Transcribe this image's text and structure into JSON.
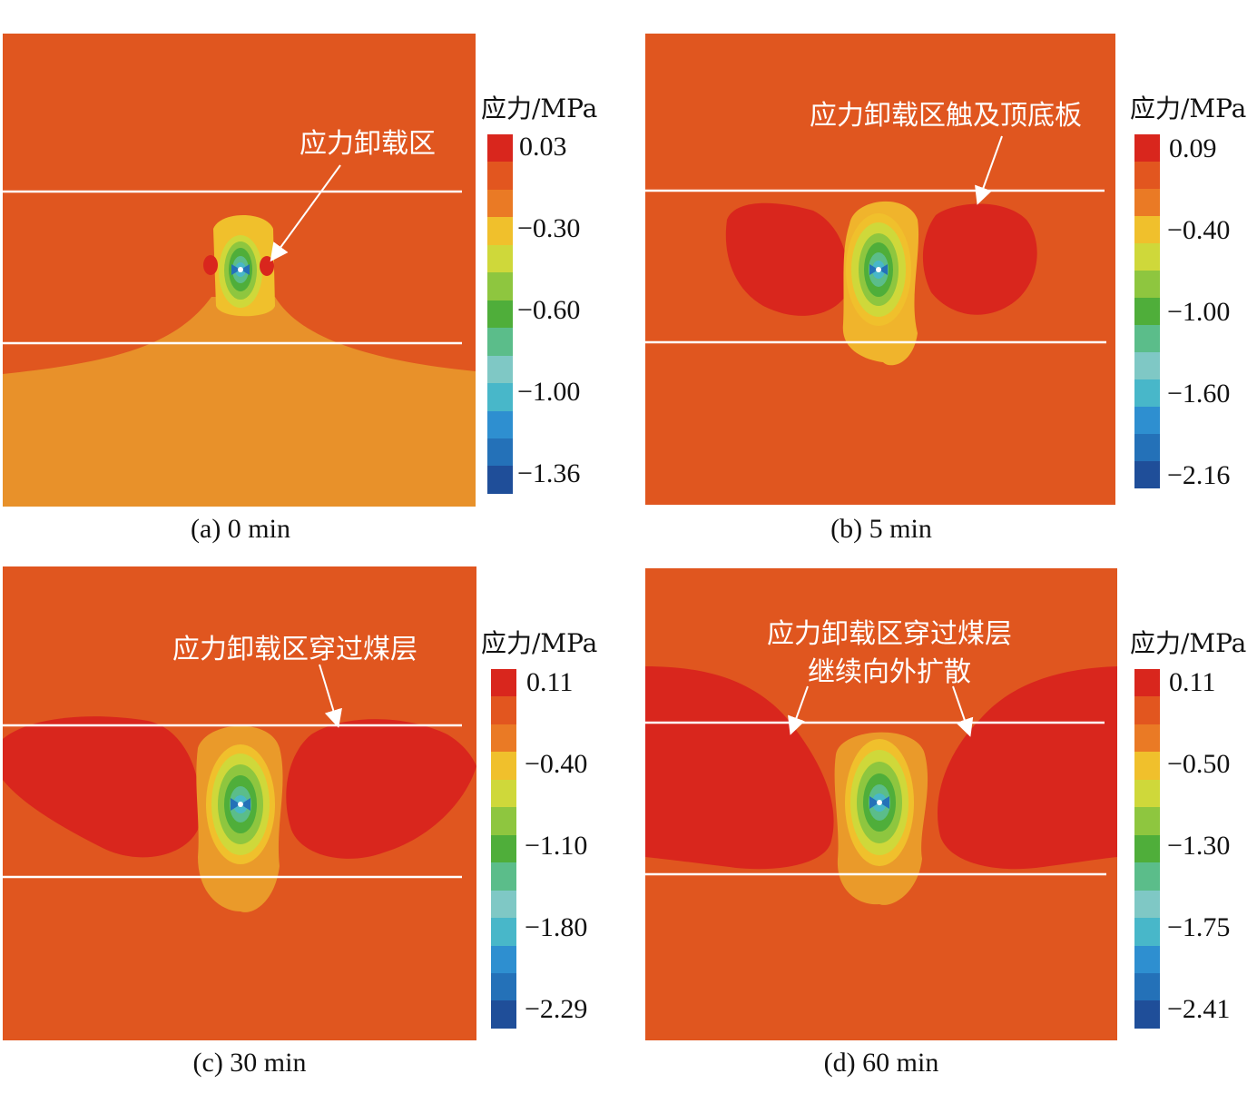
{
  "colors": {
    "background_red_orange": "#e0561f",
    "relief_red": "#d9261d",
    "orange_light": "#e8912a",
    "orange": "#ea7a25",
    "yellow": "#f0c02c",
    "yellow_green": "#cfd83a",
    "green_light": "#8ec63f",
    "green": "#4fae3a",
    "teal": "#5bbd8a",
    "cyan": "#48b7c9",
    "blue_light": "#2e9fd8",
    "blue": "#2471b8",
    "navy": "#1f4e99",
    "line_white": "#ffffff"
  },
  "colorbar_colors": [
    "#d9261d",
    "#e2561f",
    "#ea7a25",
    "#f0c02c",
    "#cfd83a",
    "#8ec63f",
    "#4fae3a",
    "#5bbd8a",
    "#7fc8c5",
    "#48b7c9",
    "#2e8fd0",
    "#2471b8",
    "#1f4e99"
  ],
  "panels": [
    {
      "caption": "(a) 0 min",
      "colorbar_title": "应力/MPa",
      "ticks": [
        "0.03",
        "−0.30",
        "−0.60",
        "−1.00",
        "−1.36"
      ],
      "annotation_lines": [
        "应力卸载区"
      ]
    },
    {
      "caption": "(b) 5 min",
      "colorbar_title": "应力/MPa",
      "ticks": [
        "0.09",
        "−0.40",
        "−1.00",
        "−1.60",
        "−2.16"
      ],
      "annotation_lines": [
        "应力卸载区触及顶底板"
      ]
    },
    {
      "caption": "(c) 30 min",
      "colorbar_title": "应力/MPa",
      "ticks": [
        "0.11",
        "−0.40",
        "−1.10",
        "−1.80",
        "−2.29"
      ],
      "annotation_lines": [
        "应力卸载区穿过煤层"
      ]
    },
    {
      "caption": "(d) 60 min",
      "colorbar_title": "应力/MPa",
      "ticks": [
        "0.11",
        "−0.50",
        "−1.30",
        "−1.75",
        "−2.41"
      ],
      "annotation_lines": [
        "应力卸载区穿过煤层",
        "继续向外扩散"
      ]
    }
  ]
}
